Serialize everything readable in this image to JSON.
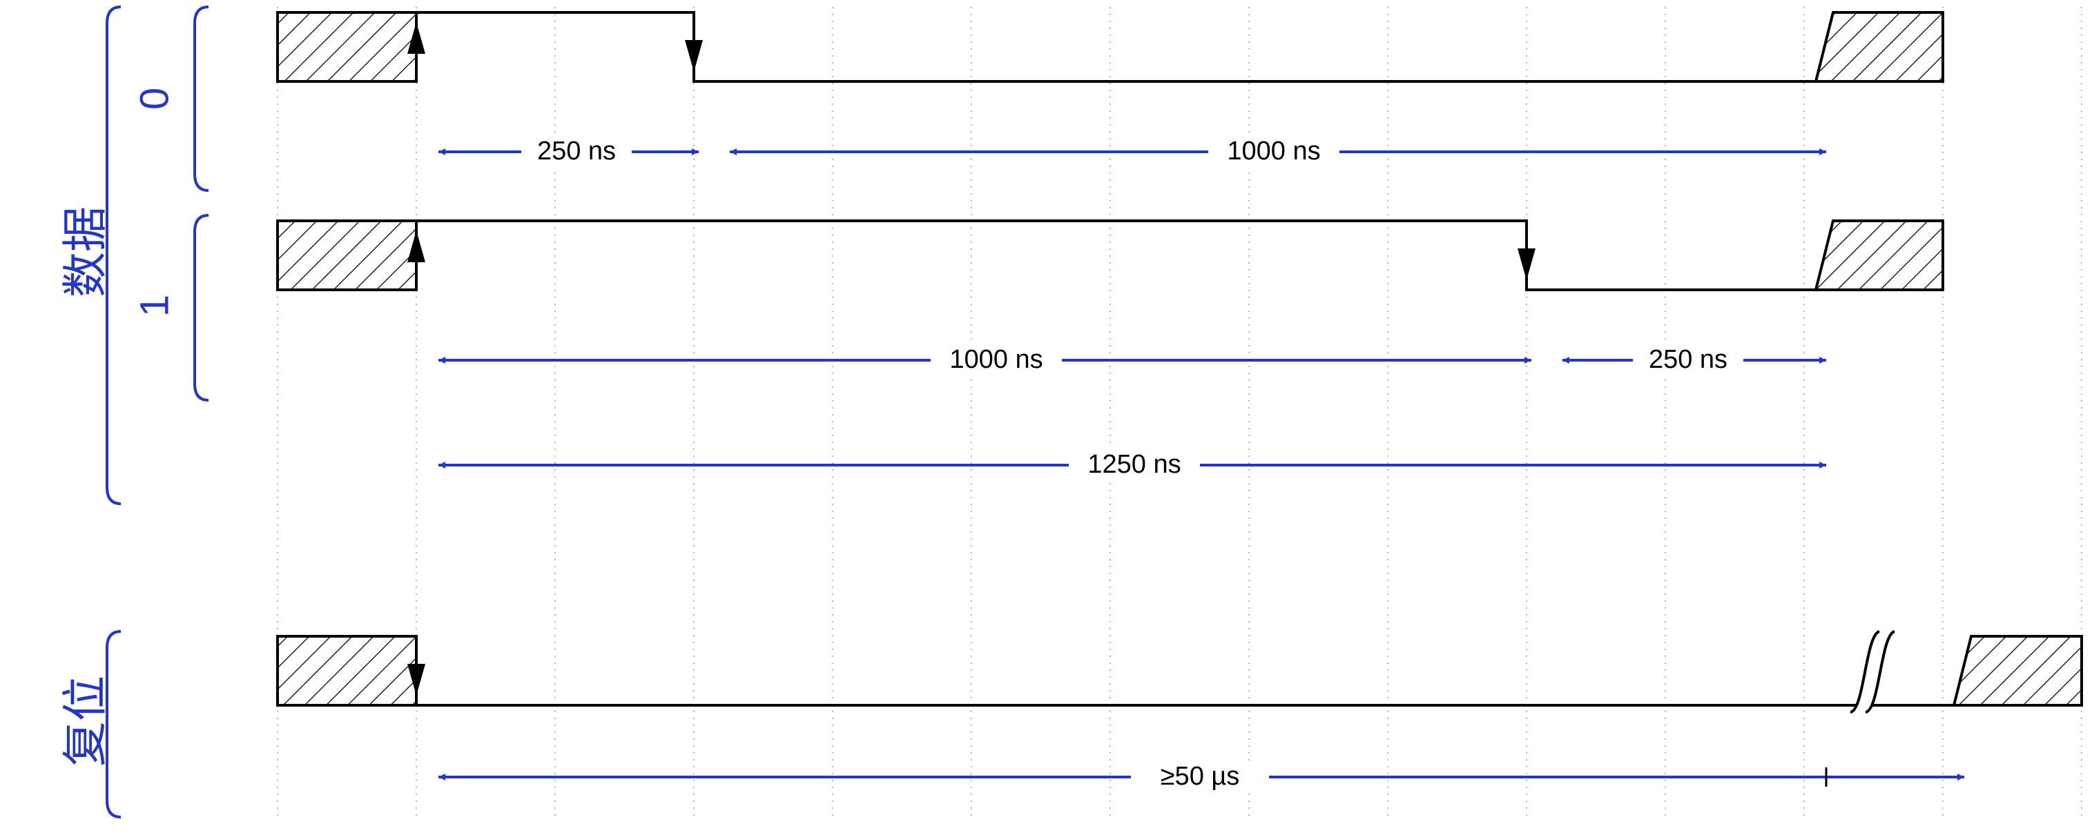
{
  "groups": {
    "data": "数据",
    "reset": "复位"
  },
  "rows": {
    "bit0": "0",
    "bit1": "1"
  },
  "durations": {
    "bit0_high": "250 ns",
    "bit0_low": "1000 ns",
    "bit1_high": "1000 ns",
    "bit1_low": "250 ns",
    "bit_period": "1250 ns",
    "reset_low": "≥50 µs"
  },
  "colors": {
    "annotation": "#2436c8",
    "signal": "#000000",
    "grid": "#b8b8b8"
  }
}
